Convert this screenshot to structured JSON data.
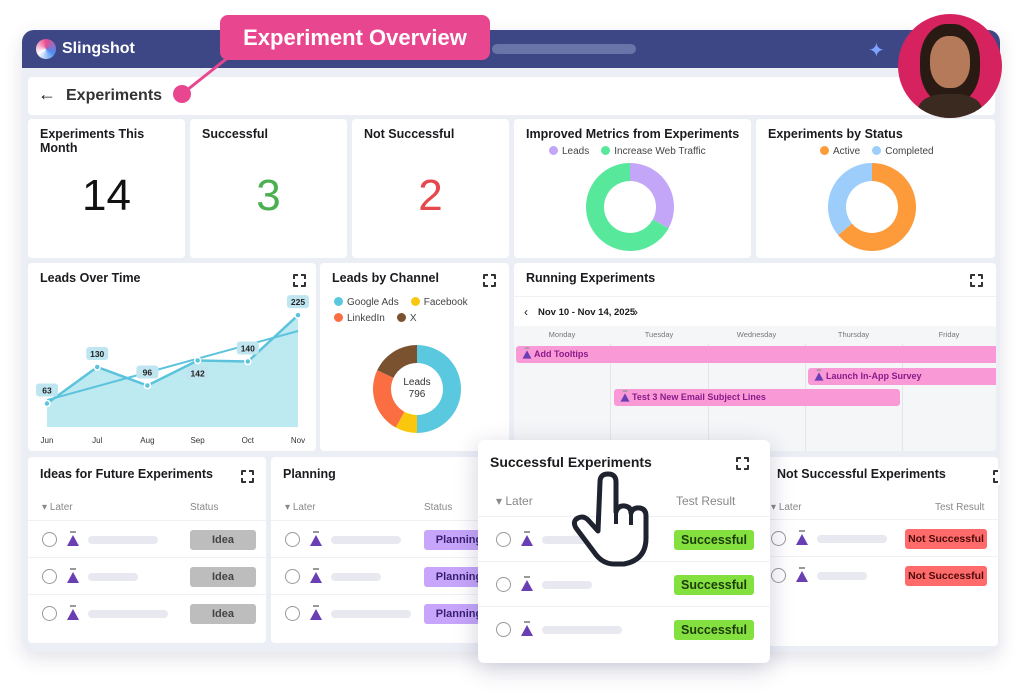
{
  "app": {
    "name": "Slingshot",
    "page_title": "Experiments",
    "callout": "Experiment Overview"
  },
  "kpis": [
    {
      "label": "Experiments This Month",
      "value": "14",
      "color": "#111111"
    },
    {
      "label": "Successful",
      "value": "3",
      "color": "#4caf50"
    },
    {
      "label": "Not Successful",
      "value": "2",
      "color": "#e5484d"
    }
  ],
  "chart_data": [
    {
      "type": "pie",
      "title": "Improved Metrics from Experiments",
      "categories": [
        "Leads",
        "Increase Web Traffic"
      ],
      "values": [
        33,
        67
      ],
      "colors": [
        "#c3a6f7",
        "#57e89c"
      ]
    },
    {
      "type": "pie",
      "title": "Experiments by Status",
      "categories": [
        "Active",
        "Completed"
      ],
      "values": [
        64,
        36
      ],
      "colors": [
        "#fd9a3a",
        "#9ccdfb"
      ]
    },
    {
      "type": "area",
      "title": "Leads Over Time",
      "categories": [
        "Jun",
        "Jul",
        "Aug",
        "Sep",
        "Oct",
        "Nov"
      ],
      "values": [
        63,
        130,
        96,
        142,
        140,
        225
      ],
      "trendline": true,
      "ylim": [
        20,
        240
      ],
      "color": "#5bc3dc"
    },
    {
      "type": "pie",
      "title": "Leads by Channel",
      "center_label": "Leads",
      "center_value": "796",
      "categories": [
        "Google Ads",
        "Facebook",
        "LinkedIn",
        "X"
      ],
      "values": [
        398,
        64,
        191,
        143
      ],
      "colors": [
        "#5ac8df",
        "#f9c80e",
        "#fb6e41",
        "#7a5230"
      ]
    }
  ],
  "running": {
    "title": "Running Experiments",
    "range": "Nov 10 - Nov 14, 2025",
    "days": [
      "Monday",
      "Tuesday",
      "Wednesday",
      "Thursday",
      "Friday"
    ],
    "items": [
      "Add Tooltips",
      "Launch In-App Survey",
      "Test 3 New Email Subject Lines"
    ]
  },
  "ideas": {
    "title": "Ideas for Future Experiments",
    "col1": "Later",
    "col2": "Status",
    "badges": [
      "Idea",
      "Idea",
      "Idea"
    ]
  },
  "planning": {
    "title": "Planning",
    "col1": "Later",
    "col2": "Status",
    "badges": [
      "Planning",
      "Planning",
      "Planning"
    ]
  },
  "successful": {
    "title": "Successful Experiments",
    "col1": "Later",
    "col2": "Test Result",
    "badges": [
      "Successful",
      "Successful",
      "Successful"
    ]
  },
  "not_successful": {
    "title": "Not Successful Experiments",
    "col1": "Later",
    "col2": "Test Result",
    "badges": [
      "Not Successful",
      "Not Successful"
    ]
  }
}
